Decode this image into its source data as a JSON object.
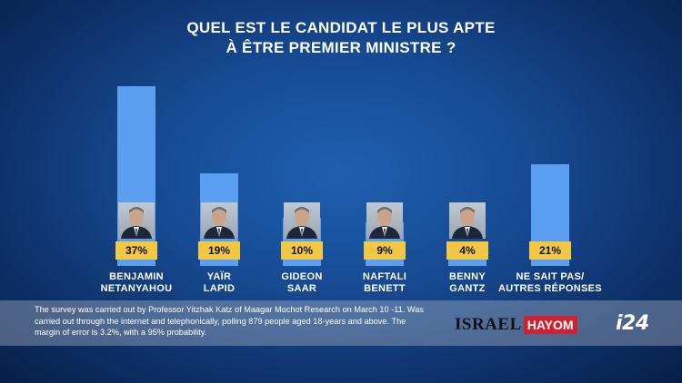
{
  "chart_data": {
    "type": "bar",
    "title": "QUEL EST LE CANDIDAT LE PLUS APTE\nÀ ÊTRE PREMIER MINISTRE ?",
    "title_lines": [
      "QUEL EST LE CANDIDAT LE PLUS APTE",
      "À ÊTRE PREMIER MINISTRE ?"
    ],
    "categories": [
      [
        "BENJAMIN",
        "NETANYAHOU"
      ],
      [
        "YAÏR",
        "LAPID"
      ],
      [
        "GIDEON",
        "SAAR"
      ],
      [
        "NAFTALI",
        "BENETT"
      ],
      [
        "BENNY",
        "GANTZ"
      ],
      [
        "NE SAIT PAS/",
        "AUTRES RÉPONSES"
      ]
    ],
    "values": [
      37,
      19,
      10,
      9,
      4,
      21
    ],
    "value_labels": [
      "37%",
      "19%",
      "10%",
      "9%",
      "4%",
      "21%"
    ],
    "has_photo": [
      true,
      true,
      true,
      true,
      true,
      false
    ],
    "unit": "%",
    "xlabel": "",
    "ylabel": "",
    "ylim": [
      0,
      40
    ],
    "grid": false,
    "legend": "none",
    "bar_color": "#5b9ff0",
    "label_color": "#f2c744"
  },
  "footnote": "The survey was carried out by Professor Yitzhak Katz of Maagar Mochot Research on March 10 -11. Was carried out through the internet and telephonically, polling 879 people aged 18-years and above. The margin of error is 3.2%, with a 95% probability.",
  "logos": {
    "israel_hayom": {
      "part1": "ISRAEL",
      "part2": "HAYOM"
    },
    "i24": "i24"
  },
  "colors": {
    "background": "#164a92",
    "bar": "#5b9ff0",
    "value_label_bg": "#f2c744",
    "hayom_red": "#d1202f"
  }
}
